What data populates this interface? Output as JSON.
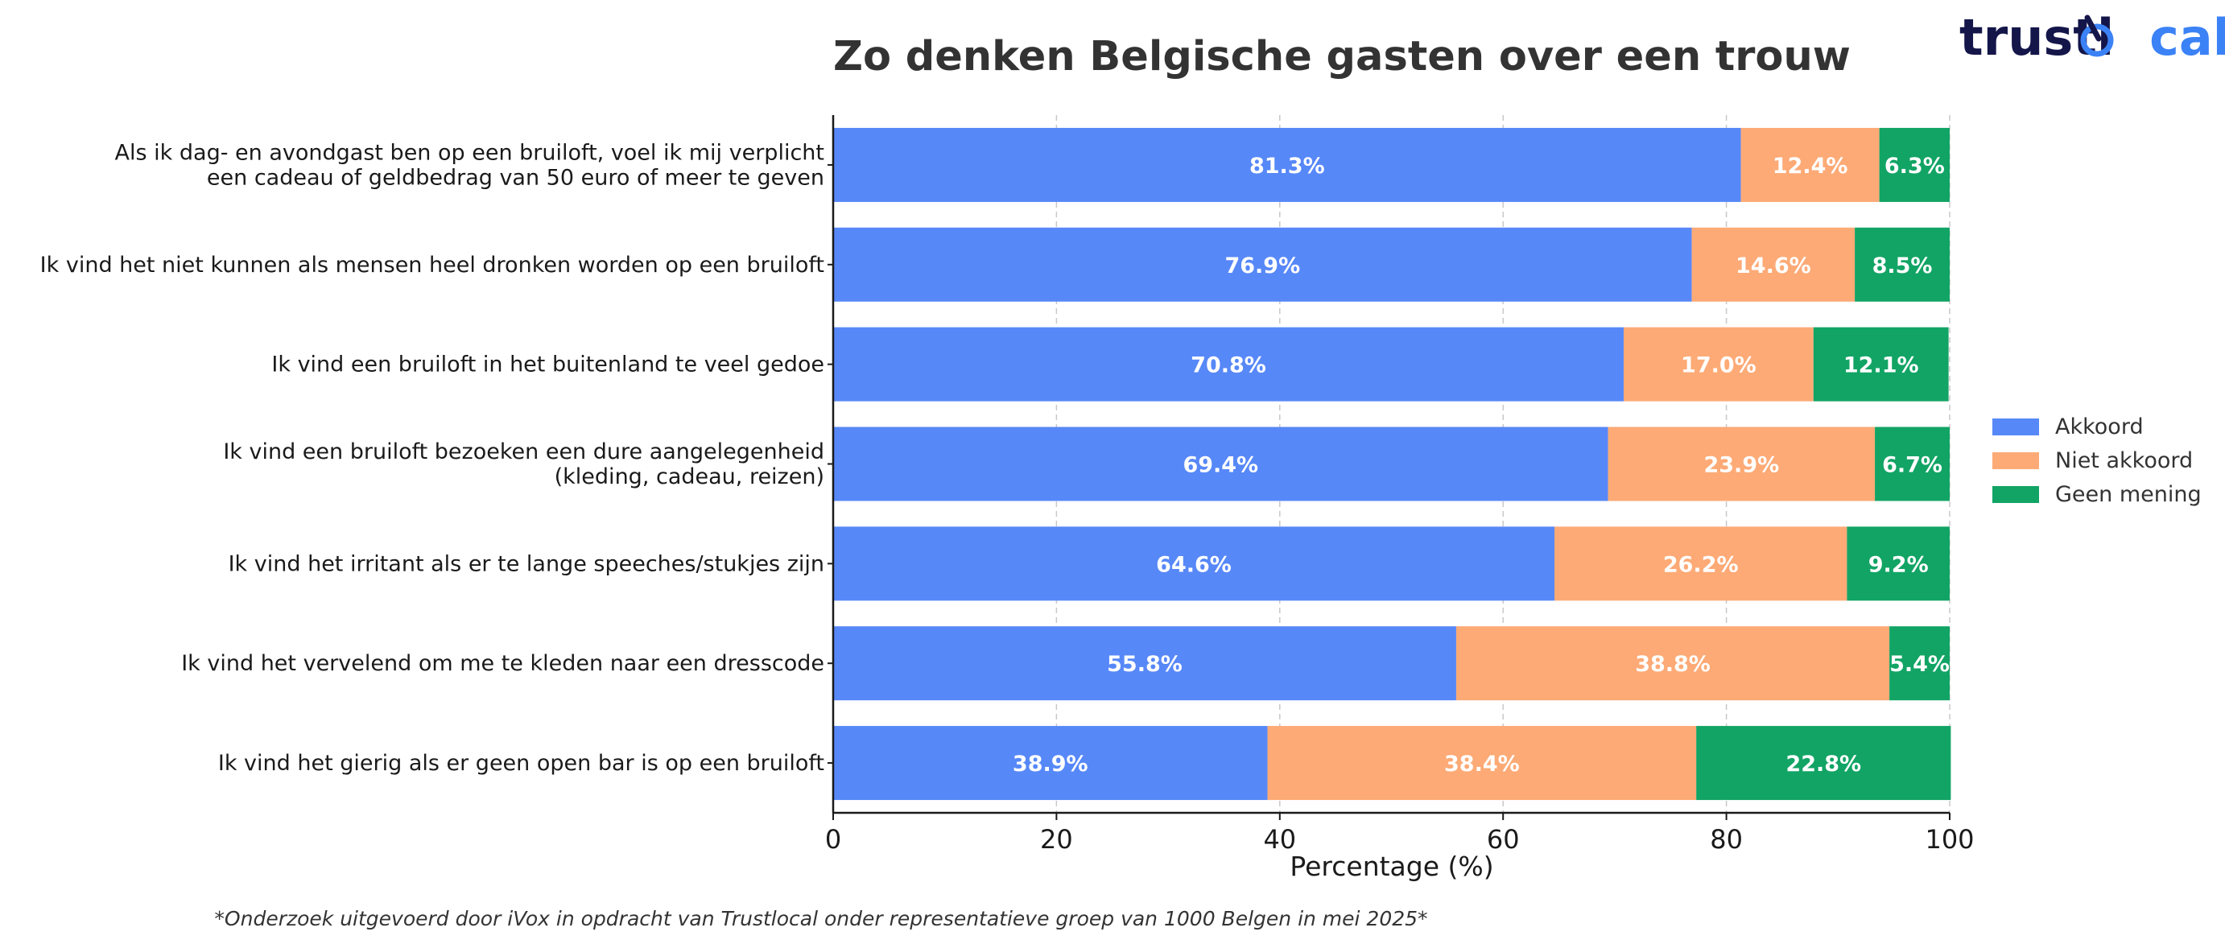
{
  "logo": {
    "part1": "trustl",
    "part2": "cal"
  },
  "footnote": "*Onderzoek uitgevoerd door iVox in opdracht van Trustlocal onder representatieve groep van 1000 Belgen in mei 2025*",
  "chart_data": {
    "type": "bar",
    "orientation": "horizontal",
    "stacked": true,
    "title": "Zo denken Belgische gasten over een trouw",
    "xlabel": "Percentage (%)",
    "ylabel": "",
    "xlim": [
      0,
      100
    ],
    "xticks": [
      0,
      20,
      40,
      60,
      80,
      100
    ],
    "grid": true,
    "legend_position": "right",
    "categories": [
      [
        "Als ik dag- en avondgast ben op een bruiloft, voel ik mij verplicht",
        "een cadeau of geldbedrag van 50 euro of meer te geven"
      ],
      [
        "Ik vind het niet kunnen als mensen heel dronken worden op een bruiloft"
      ],
      [
        "Ik vind een bruiloft in het buitenland te veel gedoe"
      ],
      [
        "Ik vind een bruiloft bezoeken een dure aangelegenheid",
        "(kleding, cadeau, reizen)"
      ],
      [
        "Ik vind het irritant als er te lange speeches/stukjes zijn"
      ],
      [
        "Ik vind het vervelend om me te kleden naar een dresscode"
      ],
      [
        "Ik vind het gierig als er geen open bar is op een bruiloft"
      ]
    ],
    "series": [
      {
        "name": "Akkoord",
        "color": "#5788f8",
        "values": [
          81.3,
          76.9,
          70.8,
          69.4,
          64.6,
          55.8,
          38.9
        ]
      },
      {
        "name": "Niet akkoord",
        "color": "#fdaa76",
        "values": [
          12.4,
          14.6,
          17.0,
          23.9,
          26.2,
          38.8,
          38.4
        ]
      },
      {
        "name": "Geen mening",
        "color": "#12a465",
        "values": [
          6.3,
          8.5,
          12.1,
          6.7,
          9.2,
          5.4,
          22.8
        ]
      }
    ]
  }
}
